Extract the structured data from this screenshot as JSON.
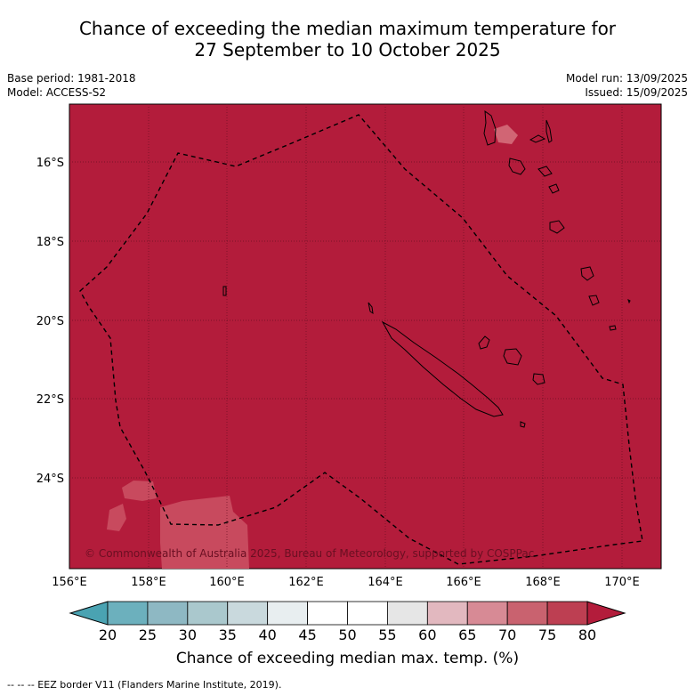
{
  "title": {
    "line1": "Chance of exceeding the median maximum temperature for",
    "line2": "27 September to 10 October 2025"
  },
  "meta": {
    "base_period": "Base period: 1981-2018",
    "model": "Model: ACCESS-S2",
    "model_run": "Model run: 13/09/2025",
    "issued": "Issued: 15/09/2025"
  },
  "map": {
    "background_color": "#b31c3b",
    "lat_labels": [
      "16°S",
      "18°S",
      "20°S",
      "22°S",
      "24°S"
    ],
    "lon_labels": [
      "156°E",
      "158°E",
      "160°E",
      "162°E",
      "164°E",
      "166°E",
      "168°E",
      "170°E"
    ],
    "copyright": "© Commonwealth of Australia 2025, Bureau of Meteorology, supported by COSPPac"
  },
  "colorbar": {
    "tick_labels": [
      "20",
      "25",
      "30",
      "35",
      "40",
      "45",
      "50",
      "55",
      "60",
      "65",
      "70",
      "75",
      "80"
    ],
    "colors": [
      "#4aa3b2",
      "#6cb0bd",
      "#8eb8c3",
      "#aac8cd",
      "#c9d9dd",
      "#e8eef0",
      "#ffffff",
      "#ffffff",
      "#e6e6e6",
      "#e2b8bf",
      "#d78a95",
      "#c9626f",
      "#bd3f52",
      "#b31c3b"
    ],
    "title": "Chance of exceeding median max. temp. (%)"
  },
  "footnote": "--  --  -- EEZ border V11 (Flanders Marine Institute, 2019)."
}
